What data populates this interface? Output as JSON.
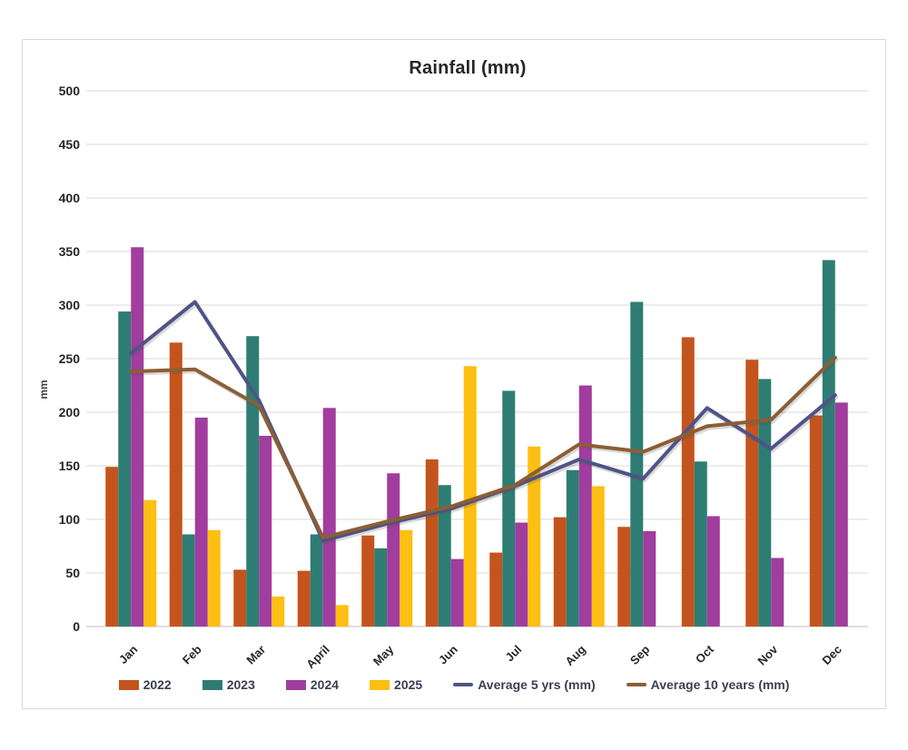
{
  "chart": {
    "title": "Rainfall (mm)",
    "y_axis_title": "mm"
  },
  "theme": {
    "card_border_color": "#d9d9d9",
    "grid_color": "#d9d9d9",
    "axis_line_color": "#bfbfbf",
    "tick_text_color": "#262626",
    "month_text_color": "#262626",
    "title_color": "#262626",
    "legend_text_color": "#3b3e54",
    "background": "#ffffff"
  },
  "chart_data": {
    "type": "bar",
    "subtype": "clustered bars with overlaid lines",
    "title": "Rainfall (mm)",
    "xlabel": "",
    "ylabel": "mm",
    "ylim": [
      0,
      500
    ],
    "ytick_step": 50,
    "y_ticks": [
      0,
      50,
      100,
      150,
      200,
      250,
      300,
      350,
      400,
      450,
      500
    ],
    "grid": true,
    "legend_position": "bottom",
    "categories": [
      "Jan",
      "Feb",
      "Mar",
      "April",
      "May",
      "Jun",
      "Jul",
      "Aug",
      "Sep",
      "Oct",
      "Nov",
      "Dec"
    ],
    "series": [
      {
        "name": "2022",
        "type": "bar",
        "color": "#c4541d",
        "values": [
          149,
          265,
          53,
          52,
          85,
          156,
          69,
          102,
          93,
          270,
          249,
          197
        ]
      },
      {
        "name": "2023",
        "type": "bar",
        "color": "#2e7d74",
        "values": [
          294,
          86,
          271,
          86,
          73,
          132,
          220,
          146,
          303,
          154,
          231,
          342
        ]
      },
      {
        "name": "2024",
        "type": "bar",
        "color": "#a03d9e",
        "values": [
          354,
          195,
          178,
          204,
          143,
          63,
          97,
          225,
          89,
          103,
          64,
          209
        ]
      },
      {
        "name": "2025",
        "type": "bar",
        "color": "#fdbf11",
        "values": [
          118,
          90,
          28,
          20,
          90,
          243,
          168,
          131,
          null,
          null,
          null,
          null
        ]
      },
      {
        "name": "Average 5 yrs (mm)",
        "type": "line",
        "color": "#4f5387",
        "values": [
          255,
          303,
          211,
          80,
          96,
          110,
          131,
          156,
          138,
          204,
          166,
          216
        ]
      },
      {
        "name": "Average 10 years (mm)",
        "type": "line",
        "color": "#8c5e34",
        "values": [
          238,
          240,
          206,
          83,
          98,
          112,
          132,
          170,
          163,
          187,
          193,
          251
        ]
      }
    ]
  }
}
